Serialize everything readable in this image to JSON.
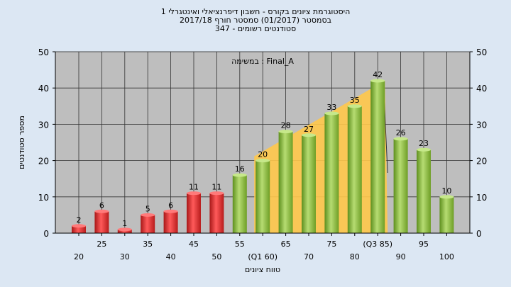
{
  "header": {
    "title_line1": "היסטוגרמת ציונים בקורס - חשבון דיפרנציאלי ואינטגרלי 1",
    "title_line2": "בסמסטר  (01/2017)  סמסטר חורף 2017/18",
    "title_line3": "סטודנטים רשומים - 347"
  },
  "chart_data": {
    "type": "bar",
    "annotation": "במשימה : Final_A",
    "xlabel": "טווח ציונים",
    "ylabel": "מספר סטודנטים",
    "ylim": [
      0,
      50
    ],
    "yticks": [
      0,
      10,
      20,
      30,
      40,
      50
    ],
    "grid": true,
    "categories": [
      "20",
      "25",
      "30",
      "35",
      "40",
      "45",
      "50",
      "55",
      "(Q1 60)",
      "65",
      "70",
      "75",
      "80",
      "(Q3 85)",
      "90",
      "95",
      "100"
    ],
    "values": [
      2,
      6,
      1,
      5,
      6,
      11,
      11,
      16,
      20,
      28,
      27,
      33,
      35,
      42,
      26,
      23,
      10
    ],
    "bar_colors": {
      "fail": "#e03030",
      "pass": "#8fc040"
    },
    "fail_count": 7,
    "quartile_band_color": "#ffc84a"
  }
}
